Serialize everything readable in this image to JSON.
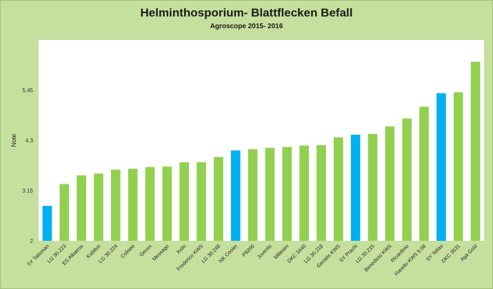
{
  "chart_data": {
    "type": "bar",
    "title": "Helminthosporium- Blattflecken Befall",
    "subtitle": "Agroscope 2015- 2016",
    "xlabel": "",
    "ylabel": "Note",
    "ylim": [
      2,
      6.6
    ],
    "yticks": [
      "2",
      "3.15",
      "4.3",
      "5.45"
    ],
    "grid": false,
    "legend": "none",
    "colors": {
      "default": "#92d050",
      "highlight": "#00b0f0"
    },
    "categories": [
      "SY Talisman",
      "LG 30.223",
      "ES Albatros",
      "Kubitus",
      "LG 30.224",
      "Colisee",
      "Geoxx",
      "Messago",
      "Xxilo",
      "Frederico KWS",
      "LG 30.248",
      "NK Cooler",
      "P8200",
      "Juvento",
      "Millesim",
      "DKC 3440",
      "LG 30.218",
      "Gerialis KWS",
      "SY Prachi",
      "LG 30.215",
      "Benedicto KWS",
      "Ricardinio",
      "Havelio KWS 5.08",
      "SY Telias",
      "DKC 3531",
      "Aga Gold"
    ],
    "values": [
      2.8,
      3.3,
      3.5,
      3.54,
      3.63,
      3.65,
      3.69,
      3.7,
      3.8,
      3.8,
      3.92,
      4.07,
      4.1,
      4.13,
      4.15,
      4.18,
      4.19,
      4.37,
      4.43,
      4.45,
      4.62,
      4.8,
      5.07,
      5.38,
      5.4,
      6.1
    ],
    "highlight": [
      "SY Talisman",
      "NK Cooler",
      "SY Prachi",
      "SY Telias"
    ]
  }
}
